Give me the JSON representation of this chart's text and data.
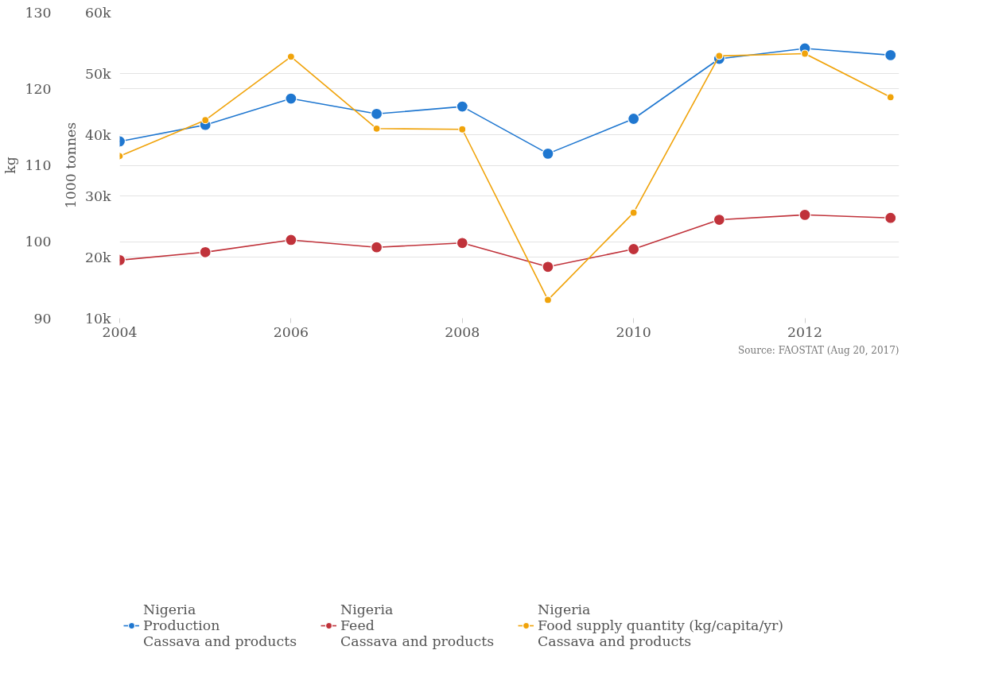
{
  "chart_data": {
    "type": "line",
    "ylabel": "1000 tonnes",
    "y2label": "kg",
    "x": [
      2004,
      2005,
      2006,
      2007,
      2008,
      2009,
      2010,
      2011,
      2012,
      2013
    ],
    "xlim": [
      2004,
      2013.1
    ],
    "xticks": [
      2004,
      2006,
      2008,
      2010,
      2012
    ],
    "ylim": [
      10000,
      60000
    ],
    "yticks": [
      {
        "value": 10000,
        "label": "10k"
      },
      {
        "value": 20000,
        "label": "20k"
      },
      {
        "value": 30000,
        "label": "30k"
      },
      {
        "value": 40000,
        "label": "40k"
      },
      {
        "value": 50000,
        "label": "50k"
      },
      {
        "value": 60000,
        "label": "60k"
      }
    ],
    "y2lim": [
      90,
      130
    ],
    "y2ticks": [
      90,
      100,
      110,
      120,
      130
    ],
    "series": [
      {
        "name": "Nigeria\nProduction\nCassava and products",
        "color": "#1f77d0",
        "values": [
          38900,
          41600,
          45900,
          43400,
          44600,
          36900,
          42600,
          52400,
          54100,
          53000
        ]
      },
      {
        "name": "Nigeria\nFeed\nCassava and products",
        "color": "#c0323a",
        "values": [
          19500,
          20800,
          22800,
          21600,
          22300,
          18400,
          21300,
          26100,
          26900,
          26400
        ]
      },
      {
        "name": "Nigeria\nFood supply quantity (kg/capita/yr)\nCassava and products",
        "color": "#f0a30a",
        "axis": "y2",
        "values": [
          111.2,
          115.9,
          124.2,
          114.8,
          114.7,
          92.4,
          103.8,
          124.3,
          124.6,
          118.9
        ]
      }
    ],
    "marker": "circle",
    "line_style": "solid",
    "grid": "y",
    "legend": "bottom",
    "annotations": [
      "Source: FAOSTAT (Aug 20, 2017)"
    ]
  }
}
